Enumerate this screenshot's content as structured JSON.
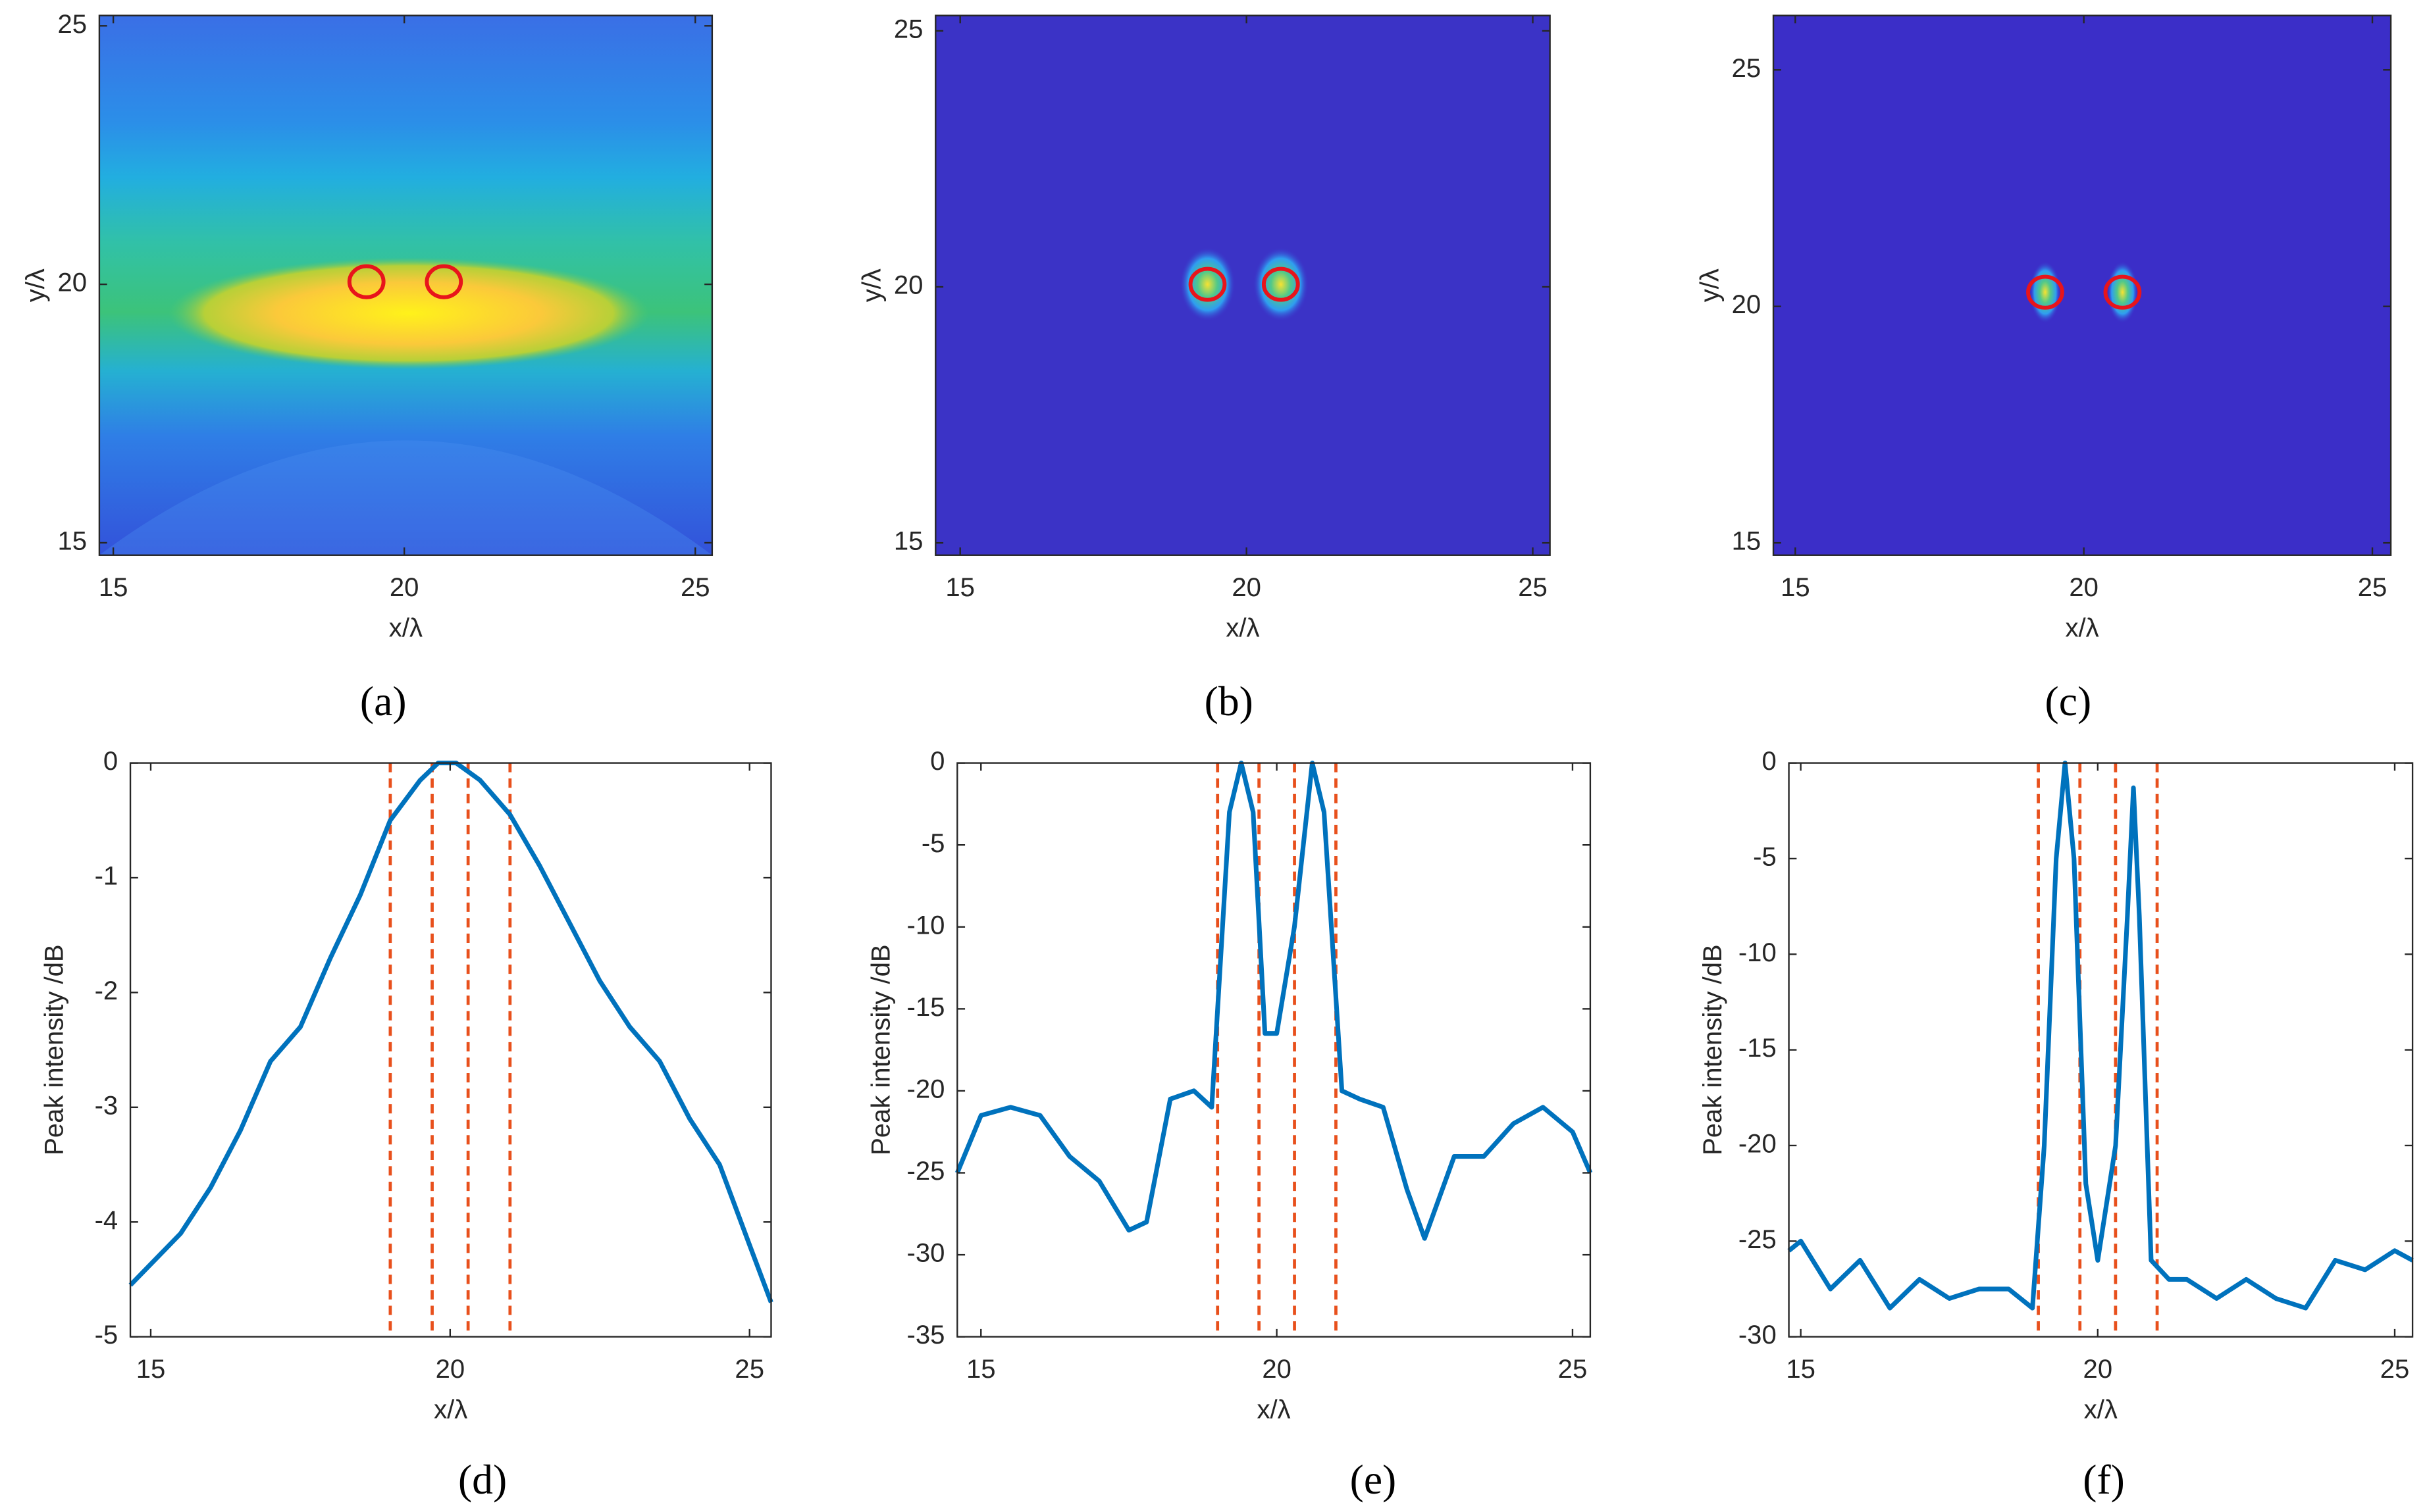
{
  "chart_data": [
    {
      "type": "heatmap",
      "caption": "(a)",
      "xlabel": "x/λ",
      "ylabel": "y/λ",
      "xlim": [
        14.76,
        25.29
      ],
      "ylim": [
        14.76,
        25.2
      ],
      "xticks": [
        15,
        20,
        25
      ],
      "yticks": [
        15,
        20,
        25
      ],
      "markers": {
        "color": "#e8141b",
        "x": [
          19.35,
          20.68
        ],
        "y": [
          20.05,
          20.05
        ]
      }
    },
    {
      "type": "heatmap",
      "caption": "(b)",
      "xlabel": "x/λ",
      "ylabel": "y/λ",
      "xlim": [
        14.57,
        25.3
      ],
      "ylim": [
        14.76,
        25.3
      ],
      "xticks": [
        15,
        20,
        25
      ],
      "yticks": [
        15,
        20,
        25
      ],
      "markers": {
        "color": "#e8141b",
        "x": [
          19.32,
          20.6
        ],
        "y": [
          20.05,
          20.05
        ]
      }
    },
    {
      "type": "heatmap",
      "caption": "(c)",
      "xlabel": "x/λ",
      "ylabel": "y/λ",
      "xlim": [
        14.62,
        25.32
      ],
      "ylim": [
        14.74,
        26.15
      ],
      "xticks": [
        15,
        20,
        25
      ],
      "yticks": [
        15,
        20,
        25
      ],
      "markers": {
        "color": "#e8141b",
        "x": [
          19.33,
          20.67
        ],
        "y": [
          20.3,
          20.3
        ]
      }
    },
    {
      "type": "line",
      "caption": "(d)",
      "xlabel": "x/λ",
      "ylabel": "Peak intensity /dB",
      "xlim": [
        14.66,
        25.36
      ],
      "ylim": [
        -5,
        0
      ],
      "xticks": [
        15,
        20,
        25
      ],
      "yticks": [
        -5,
        -4,
        -3,
        -2,
        -1,
        0
      ],
      "color": "#0072bd",
      "x": [
        14.66,
        15.5,
        16,
        16.5,
        17,
        17.5,
        18,
        18.5,
        19,
        19.5,
        19.8,
        20.1,
        20.5,
        21,
        21.5,
        22,
        22.5,
        23,
        23.5,
        24,
        24.5,
        25,
        25.36
      ],
      "values": [
        -4.55,
        -4.1,
        -3.7,
        -3.2,
        -2.6,
        -2.3,
        -1.7,
        -1.15,
        -0.5,
        -0.15,
        0,
        0,
        -0.15,
        -0.45,
        -0.9,
        -1.4,
        -1.9,
        -2.3,
        -2.6,
        -3.1,
        -3.5,
        -4.2,
        -4.7
      ],
      "vlines": {
        "color": "#e8501c",
        "x": [
          19,
          19.7,
          20.3,
          21
        ]
      }
    },
    {
      "type": "line",
      "caption": "(e)",
      "xlabel": "x/λ",
      "ylabel": "Peak intensity /dB",
      "xlim": [
        14.6,
        25.3
      ],
      "ylim": [
        -35,
        0
      ],
      "xticks": [
        15,
        20,
        25
      ],
      "yticks": [
        -35,
        -30,
        -25,
        -20,
        -15,
        -10,
        -5,
        0
      ],
      "color": "#0072bd",
      "x": [
        14.6,
        15,
        15.5,
        16,
        16.5,
        17,
        17.5,
        17.8,
        18.2,
        18.6,
        18.9,
        19.2,
        19.4,
        19.6,
        19.8,
        20,
        20.3,
        20.6,
        20.8,
        21.1,
        21.4,
        21.8,
        22.2,
        22.5,
        23,
        23.5,
        24,
        24.5,
        25,
        25.3
      ],
      "values": [
        -25,
        -21.5,
        -21,
        -21.5,
        -24,
        -25.5,
        -28.5,
        -28,
        -20.5,
        -20,
        -21,
        -3,
        0,
        -3,
        -16.5,
        -16.5,
        -10,
        0,
        -3,
        -20,
        -20.5,
        -21,
        -26,
        -29,
        -24,
        -24,
        -22,
        -21,
        -22.5,
        -25
      ],
      "vlines": {
        "color": "#e8501c",
        "x": [
          19,
          19.7,
          20.3,
          21
        ]
      }
    },
    {
      "type": "line",
      "caption": "(f)",
      "xlabel": "x/λ",
      "ylabel": "Peak intensity /dB",
      "xlim": [
        14.8,
        25.3
      ],
      "ylim": [
        -30,
        0
      ],
      "xticks": [
        15,
        20,
        25
      ],
      "yticks": [
        -30,
        -25,
        -20,
        -15,
        -10,
        -5,
        0
      ],
      "color": "#0072bd",
      "x": [
        14.8,
        15,
        15.5,
        16,
        16.5,
        17,
        17.5,
        18,
        18.5,
        18.9,
        19.1,
        19.3,
        19.45,
        19.6,
        19.8,
        20,
        20.3,
        20.5,
        20.6,
        20.7,
        20.9,
        21.2,
        21.5,
        22,
        22.5,
        23,
        23.5,
        24,
        24.5,
        25,
        25.3
      ],
      "values": [
        -25.5,
        -25,
        -27.5,
        -26,
        -28.5,
        -27,
        -28,
        -27.5,
        -27.5,
        -28.5,
        -20,
        -5,
        0,
        -5,
        -22,
        -26,
        -20,
        -8,
        -1.3,
        -8,
        -26,
        -27,
        -27,
        -28,
        -27,
        -28,
        -28.5,
        -26,
        -26.5,
        -25.5,
        -26
      ],
      "vlines": {
        "color": "#e8501c",
        "x": [
          19,
          19.7,
          20.3,
          21
        ]
      }
    }
  ]
}
